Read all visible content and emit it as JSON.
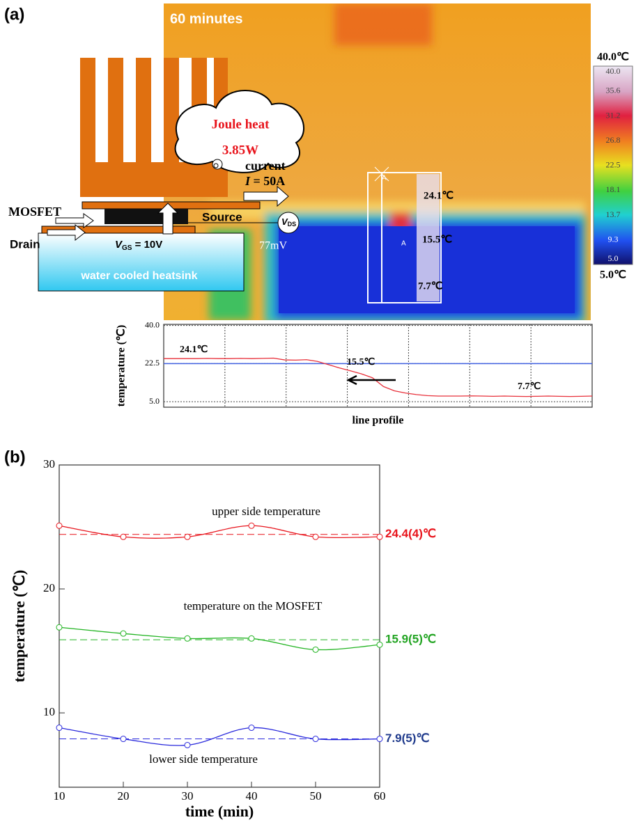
{
  "panel_a": {
    "label": "(a)",
    "time_label": "60 minutes",
    "joule_heat": "Joule heat",
    "power": "3.85W",
    "current": "current",
    "current_symbol": "I",
    "current_value": " = 50A",
    "mosfet": "MOSFET",
    "source": "Source",
    "drain": "Drain",
    "vgs_symbol": "V",
    "vgs_sub": "GS",
    "vgs_value": " = 10V",
    "heatsink": "water cooled heatsink",
    "vds_symbol": "V",
    "vds_sub": "DS",
    "vds_value": "77mV",
    "probe_marker": "A",
    "probe_labels": [
      "24.1℃",
      "15.5℃",
      "7.7℃"
    ],
    "colorbar": {
      "max_label": "40.0℃",
      "min_label": "5.0℃",
      "range": [
        5,
        40
      ],
      "ticks": [
        {
          "value": 40,
          "label": "40.0"
        },
        {
          "value": 35.6,
          "label": "35.6"
        },
        {
          "value": 31.2,
          "label": "31.2"
        },
        {
          "value": 26.8,
          "label": "26.8"
        },
        {
          "value": 22.5,
          "label": "22.5"
        },
        {
          "value": 18.1,
          "label": "18.1"
        },
        {
          "value": 13.7,
          "label": "13.7"
        },
        {
          "value": 9.3,
          "label": "9.3"
        },
        {
          "value": 5,
          "label": "5.0"
        }
      ]
    }
  },
  "chart_data": [
    {
      "type": "line",
      "ylabel": "temperature (℃)",
      "xlabel": "line profile",
      "ylim": [
        2.5,
        40.5
      ],
      "yticks": [
        {
          "value": 5,
          "label": "5.0"
        },
        22.5,
        {
          "value": 40,
          "label": "40.0"
        }
      ],
      "grid": true,
      "categories": [
        null,
        null,
        null,
        null,
        null,
        null,
        null,
        null,
        null,
        null,
        null,
        null,
        null,
        null,
        null,
        null,
        null,
        null,
        null,
        null,
        null,
        null,
        null,
        null,
        null,
        null,
        null,
        null,
        null,
        null,
        null,
        null,
        null,
        null,
        null,
        null,
        null,
        null,
        null,
        null
      ],
      "series": [
        {
          "color": "#e8303a",
          "values": [
            24.8,
            24.8,
            24.8,
            24.8,
            24.9,
            24.8,
            24.8,
            24.9,
            24.8,
            24.9,
            25.0,
            24.2,
            24.1,
            24.3,
            23.5,
            22.0,
            20.5,
            19.2,
            17.8,
            16.0,
            12.0,
            10.0,
            9.0,
            8.3,
            7.8,
            7.6,
            7.6,
            7.6,
            7.7,
            7.6,
            7.5,
            7.6,
            7.5,
            7.4,
            7.5,
            7.6,
            7.5,
            7.4,
            7.5,
            7.6
          ]
        }
      ],
      "reference_line": {
        "value": 22.5,
        "color": "#4060e0"
      },
      "annotations": [
        "24.1℃",
        "15.5℃",
        "7.7℃"
      ]
    },
    {
      "type": "line",
      "panel_label": "(b)",
      "xlabel": "time (min)",
      "ylabel": "temperature (℃)",
      "x": [
        10,
        20,
        30,
        40,
        50,
        60
      ],
      "xlim": [
        10,
        60
      ],
      "xticks": [
        10,
        20,
        30,
        40,
        50,
        60
      ],
      "ylim": [
        4,
        30
      ],
      "yticks": [
        10,
        20,
        30
      ],
      "series": [
        {
          "name": "upper side temperature",
          "color": "#e8141c",
          "values": [
            25.1,
            24.2,
            24.2,
            25.1,
            24.2,
            24.2
          ],
          "mean": 24.4,
          "mean_label": "24.4(4)℃",
          "label_color": "#e8141c"
        },
        {
          "name": "temperature on the MOSFET",
          "color": "#22b422",
          "values": [
            16.9,
            16.4,
            16.0,
            16.0,
            15.1,
            15.5
          ],
          "mean": 15.9,
          "mean_label": "15.9(5)℃",
          "label_color": "#22a422"
        },
        {
          "name": "lower side temperature",
          "color": "#2a2adc",
          "values": [
            8.8,
            7.9,
            7.4,
            8.8,
            7.9,
            7.9
          ],
          "mean": 7.9,
          "mean_label": "7.9(5)℃",
          "label_color": "#1f3a8c"
        }
      ]
    }
  ]
}
